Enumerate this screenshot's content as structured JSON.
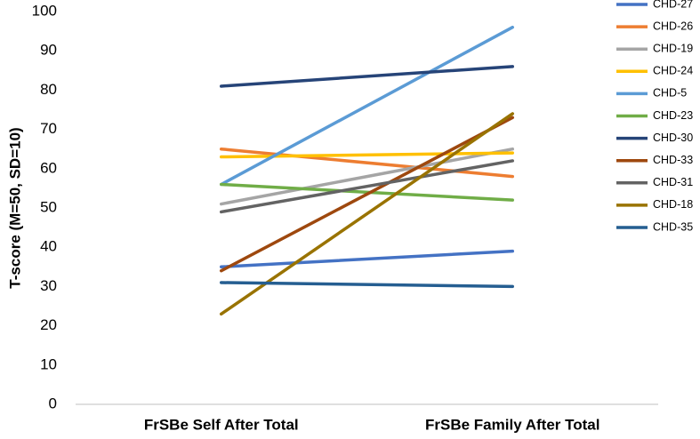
{
  "chart_data": {
    "type": "line",
    "y_label": "T-score (M=50, SD=10)",
    "categories": [
      "FrSBe Self After Total",
      "FrSBe Family After Total"
    ],
    "series": [
      {
        "name": "CHD-27",
        "color": "#4472c4",
        "values": [
          35,
          39
        ]
      },
      {
        "name": "CHD-26",
        "color": "#ed7d31",
        "values": [
          65,
          58
        ]
      },
      {
        "name": "CHD-19",
        "color": "#a5a5a5",
        "values": [
          51,
          65
        ]
      },
      {
        "name": "CHD-24",
        "color": "#ffc000",
        "values": [
          63,
          64
        ]
      },
      {
        "name": "CHD-5",
        "color": "#5b9bd5",
        "values": [
          56,
          96
        ]
      },
      {
        "name": "CHD-23",
        "color": "#70ad47",
        "values": [
          56,
          52
        ]
      },
      {
        "name": "CHD-30",
        "color": "#264478",
        "values": [
          81,
          86
        ]
      },
      {
        "name": "CHD-33",
        "color": "#9e480e",
        "values": [
          34,
          73
        ]
      },
      {
        "name": "CHD-31",
        "color": "#636363",
        "values": [
          49,
          62
        ]
      },
      {
        "name": "CHD-18",
        "color": "#997300",
        "values": [
          23,
          74
        ]
      },
      {
        "name": "CHD-35",
        "color": "#255e91",
        "values": [
          31,
          30
        ]
      }
    ],
    "ylim": [
      0,
      100
    ],
    "yticks": [
      0,
      10,
      20,
      30,
      40,
      50,
      60,
      70,
      80,
      90,
      100
    ],
    "grid": false,
    "legend": "right"
  }
}
